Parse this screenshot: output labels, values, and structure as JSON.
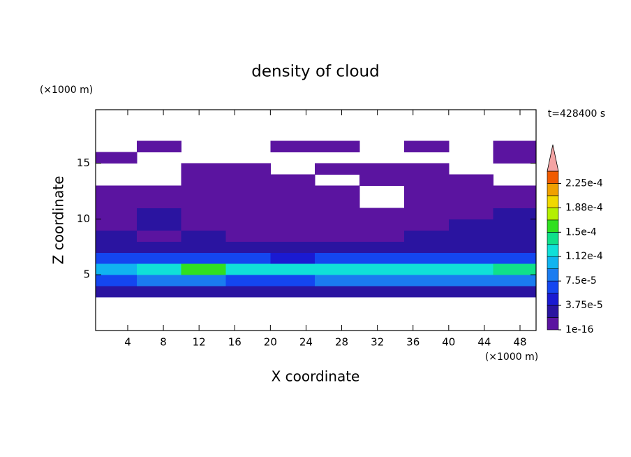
{
  "chart_data": {
    "type": "contour",
    "title": "density of cloud",
    "x_label": "X coordinate",
    "y_label": "Z coordinate",
    "x_unit": "(×1000 m)",
    "y_unit": "(×1000 m)",
    "annotation": "t=428400 s",
    "xlim": [
      0.4,
      49.8
    ],
    "ylim": [
      0,
      19.8
    ],
    "xticks": [
      4,
      8,
      12,
      16,
      20,
      24,
      28,
      32,
      36,
      40,
      44,
      48
    ],
    "yticks": [
      5,
      10,
      15
    ],
    "x": [
      2.5,
      7.5,
      12.5,
      17.5,
      22.5,
      27.5,
      32.5,
      37.5,
      42.5,
      47.5
    ],
    "y": [
      3.5,
      4.5,
      5.5,
      6.5,
      7.5,
      8.5,
      9.5,
      10.5,
      11.5,
      12.5,
      13.5,
      14.5,
      15.5,
      16.5
    ],
    "z": [
      [
        2e-05,
        2e-05,
        2e-05,
        2e-05,
        2e-05,
        2e-05,
        2e-05,
        2e-05,
        2e-05,
        2e-05
      ],
      [
        6e-05,
        8e-05,
        9e-05,
        7e-05,
        7e-05,
        8e-05,
        8e-05,
        9e-05,
        8e-05,
        8e-05
      ],
      [
        0.0001,
        0.00013,
        0.00015,
        0.00012,
        0.00012,
        0.00013,
        0.00012,
        0.00013,
        0.00012,
        0.00014
      ],
      [
        6e-05,
        7e-05,
        6e-05,
        6e-05,
        5e-05,
        6e-05,
        7e-05,
        6e-05,
        6e-05,
        7e-05
      ],
      [
        3e-05,
        3e-05,
        3e-05,
        3e-05,
        2e-05,
        2e-05,
        3e-05,
        3e-05,
        3e-05,
        3e-05
      ],
      [
        2e-05,
        1.5e-05,
        2e-05,
        1e-05,
        8e-06,
        8e-06,
        1e-05,
        2e-05,
        2e-05,
        2e-05
      ],
      [
        1e-05,
        2e-05,
        1.5e-05,
        1e-05,
        5e-06,
        5e-06,
        8e-06,
        1.5e-05,
        2e-05,
        2.5e-05
      ],
      [
        8e-06,
        2e-05,
        1e-05,
        8e-06,
        5e-06,
        8e-06,
        5e-06,
        1e-05,
        8e-06,
        2e-05
      ],
      [
        5e-06,
        8e-06,
        5e-06,
        5e-06,
        5e-06,
        5e-06,
        null,
        5e-06,
        5e-06,
        5e-06
      ],
      [
        5e-06,
        5e-06,
        5e-06,
        1e-06,
        1e-06,
        5e-06,
        null,
        1e-06,
        1e-06,
        1e-06
      ],
      [
        null,
        null,
        1e-06,
        1e-06,
        1e-06,
        null,
        1e-06,
        1e-06,
        1e-06,
        null
      ],
      [
        null,
        null,
        1e-06,
        1e-06,
        null,
        1e-06,
        1e-06,
        1e-06,
        null,
        null
      ],
      [
        1e-06,
        null,
        null,
        null,
        null,
        null,
        null,
        null,
        null,
        1e-06
      ],
      [
        null,
        1e-06,
        null,
        null,
        1e-06,
        1e-06,
        null,
        1e-06,
        null,
        1e-06
      ]
    ],
    "levels": [
      1e-16,
      1.875e-05,
      3.75e-05,
      5.625e-05,
      7.5e-05,
      9.375e-05,
      0.0001125,
      0.00013125,
      0.00015,
      0.00016875,
      0.0001875,
      0.00020625,
      0.000225,
      0.00024375
    ],
    "colors": [
      "#5b14a0",
      "#2a14a0",
      "#1a1ad2",
      "#1446f0",
      "#1a7cf0",
      "#10b4f0",
      "#10e0d8",
      "#10e08a",
      "#30e020",
      "#b4f000",
      "#f0d800",
      "#f0a000",
      "#f05a00"
    ],
    "overflow_color": "#f4a4a4",
    "clim": [
      1e-16,
      0.00024375
    ],
    "colorbar_ticks": [
      {
        "value": 1e-16,
        "label": "1e-16"
      },
      {
        "value": 3.75e-05,
        "label": "3.75e-5"
      },
      {
        "value": 7.5e-05,
        "label": "7.5e-5"
      },
      {
        "value": 0.0001125,
        "label": "1.12e-4"
      },
      {
        "value": 0.00015,
        "label": "1.5e-4"
      },
      {
        "value": 0.0001875,
        "label": "1.88e-4"
      },
      {
        "value": 0.000225,
        "label": "2.25e-4"
      }
    ]
  }
}
